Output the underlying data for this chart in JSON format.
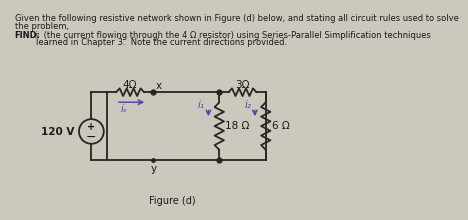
{
  "title_line1": "Given the following resistive network shown in Figure (d) below, and stating all circuit rules used to solve",
  "title_line2": "the problem,",
  "find_bold": "FIND:",
  "find_italic": " iₛ",
  "find_rest": "  (the current flowing through the 4 Ω resistor) using Series-Parallel Simplification techniques",
  "find_line2": "         learned in Chapter 3.  Note the current directions provided.",
  "figure_label": "Figure (d)",
  "voltage_source": "120 V",
  "r1_label": "4Ω",
  "r2_label": "3Ω",
  "r3_label": "18 Ω",
  "r4_label": "6 Ω",
  "node_x": "x",
  "node_y": "y",
  "i_s_label": "iₛ",
  "i1_label": "i₁",
  "i2_label": "i₂",
  "bg_color": "#cdc8be",
  "text_color": "#1a1a1a",
  "line_color": "#1a1a1a",
  "circuit_line_color": "#2a2520"
}
